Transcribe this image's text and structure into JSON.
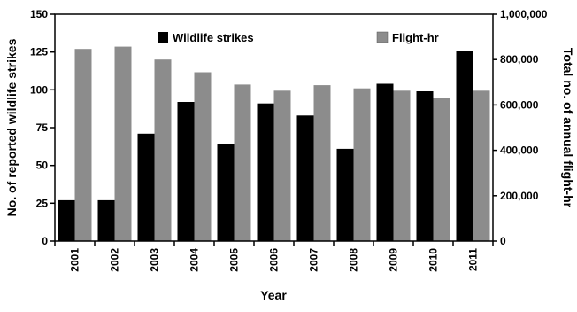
{
  "chart_data": {
    "type": "bar",
    "title": "",
    "xlabel": "Year",
    "ylabel_left": "No. of reported wildlife strikes",
    "ylabel_right": "Total no. of annual flight-hr",
    "categories": [
      "2001",
      "2002",
      "2003",
      "2004",
      "2005",
      "2006",
      "2007",
      "2008",
      "2009",
      "2010",
      "2011"
    ],
    "series": [
      {
        "name": "Wildlife strikes",
        "axis": "left",
        "color": "#000000",
        "values": [
          27,
          27,
          71,
          92,
          64,
          91,
          83,
          61,
          104,
          99,
          126
        ]
      },
      {
        "name": "Flight-hr",
        "axis": "right",
        "color": "#8c8c8c",
        "values": [
          847000,
          857000,
          800000,
          744000,
          690000,
          663000,
          687000,
          673000,
          663000,
          632000,
          663000
        ]
      }
    ],
    "ylim_left": [
      0,
      150
    ],
    "yticks_left": [
      "0",
      "25",
      "50",
      "75",
      "100",
      "125",
      "150"
    ],
    "ylim_right": [
      0,
      1000000
    ],
    "yticks_right": [
      "0",
      "200,000",
      "400,000",
      "600,000",
      "800,000",
      "1,000,000"
    ],
    "grid": false,
    "legend_placement": "top-center"
  }
}
